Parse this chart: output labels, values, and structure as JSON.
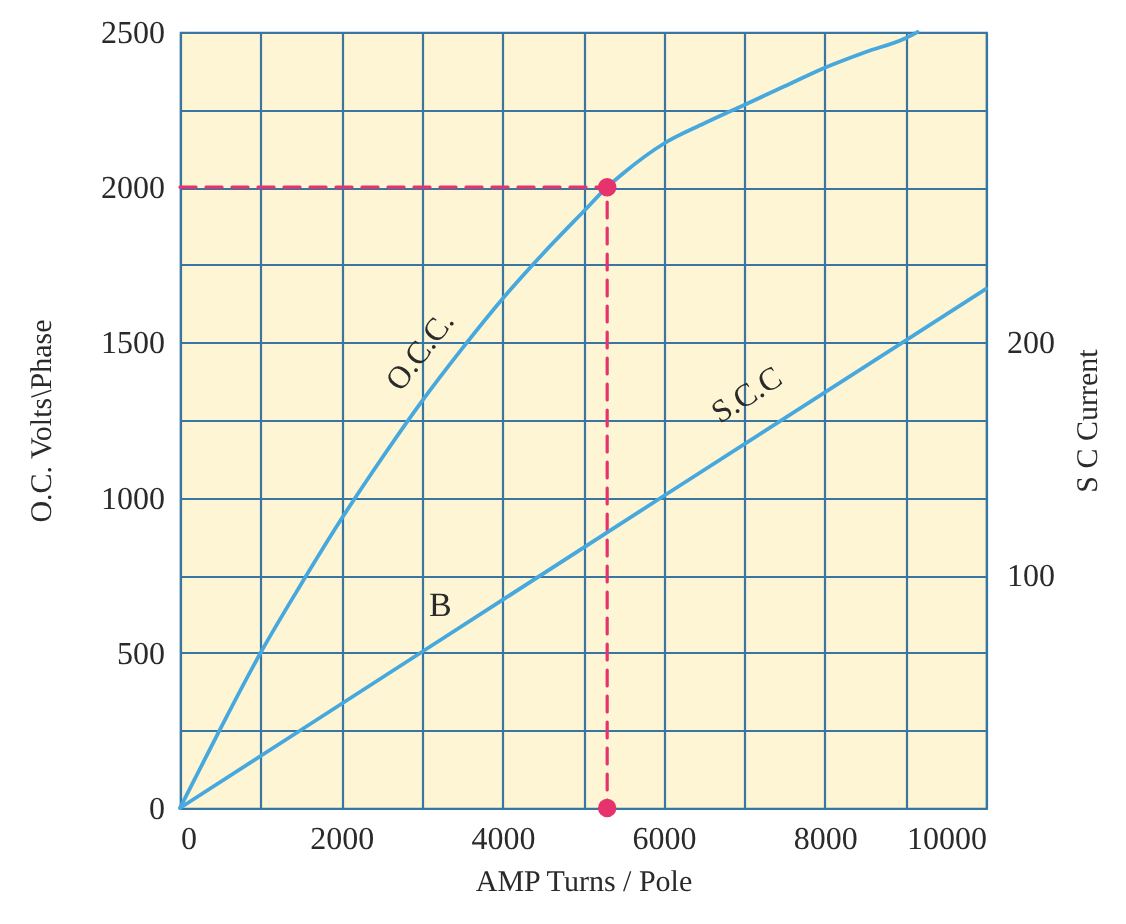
{
  "chart_data": {
    "type": "line",
    "xlabel": "AMP Turns / Pole",
    "ylabel": "O.C. Volts\\Phase",
    "y2label": "S C Current",
    "xlim": [
      0,
      10000
    ],
    "xticks": [
      0,
      {
        "value": 1000,
        "label": null
      },
      2000,
      {
        "value": 3000,
        "label": null
      },
      4000,
      {
        "value": 5000,
        "label": null
      },
      6000,
      {
        "value": 7000,
        "label": null
      },
      8000,
      {
        "value": 9000,
        "label": null
      },
      10000
    ],
    "ylim": [
      0,
      2500
    ],
    "yticks": [
      0,
      {
        "value": 250,
        "label": null
      },
      500,
      {
        "value": 750,
        "label": null
      },
      1000,
      {
        "value": 1250,
        "label": null
      },
      1500,
      {
        "value": 1750,
        "label": null
      },
      2000,
      {
        "value": 2250,
        "label": null
      },
      2500
    ],
    "y2lim": [
      0,
      333.3
    ],
    "y2ticks": [
      100,
      200
    ],
    "grid": true,
    "series": [
      {
        "name": "O.C.C.",
        "color": "#47a8de",
        "x": [
          0,
          500,
          1000,
          1500,
          2000,
          2500,
          3000,
          3500,
          4000,
          4500,
          5000,
          5300,
          5500,
          6000,
          6500,
          7000,
          7500,
          8000,
          8500,
          9000,
          9150
        ],
        "values": [
          0,
          255,
          500,
          720,
          930,
          1125,
          1310,
          1480,
          1640,
          1785,
          1920,
          2000,
          2045,
          2140,
          2205,
          2265,
          2325,
          2385,
          2435,
          2480,
          2500
        ]
      },
      {
        "name": "S.C.C",
        "color": "#47a8de",
        "axis": "y2",
        "x": [
          0,
          3000,
          6000,
          10000
        ],
        "values": [
          0,
          67,
          134,
          223
        ]
      },
      {
        "type": "line",
        "color": "#e6336e",
        "line_style": "dashed",
        "x": [
          0,
          5300,
          5300
        ],
        "values": [
          2000,
          2000,
          0
        ]
      },
      {
        "type": "scatter",
        "color": "#e6336e",
        "marker": "circle",
        "x": [
          5300,
          5300
        ],
        "values": [
          2000,
          0
        ]
      }
    ],
    "annotations": [
      "B"
    ]
  }
}
